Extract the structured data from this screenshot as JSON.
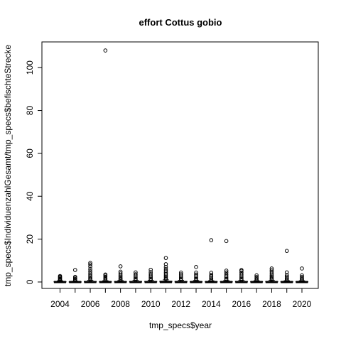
{
  "chart_data": {
    "type": "boxplot",
    "title": "effort Cottus gobio",
    "xlabel": "tmp_specs$year",
    "ylabel": "tmp_specs$IndividuenzahlGesamt/tmp_specs$befischteStrecke",
    "ylim": [
      -3,
      112
    ],
    "yticks": [
      0,
      20,
      40,
      60,
      80,
      100
    ],
    "xtick_labels": [
      "2004",
      "2006",
      "2008",
      "2010",
      "2012",
      "2014",
      "2016",
      "2018",
      "2020"
    ],
    "categories": [
      "2004",
      "2005",
      "2006",
      "2007",
      "2008",
      "2009",
      "2010",
      "2011",
      "2012",
      "2013",
      "2014",
      "2015",
      "2016",
      "2017",
      "2018",
      "2019",
      "2020"
    ],
    "boxes": [
      {
        "year": "2004",
        "min": 0,
        "q1": 0,
        "median": 0,
        "q3": 0.2,
        "max": 0.6,
        "outliers": [
          0.8,
          1.0,
          1.3,
          1.6,
          2.0,
          2.4,
          2.8
        ]
      },
      {
        "year": "2005",
        "min": 0,
        "q1": 0,
        "median": 0,
        "q3": 0.1,
        "max": 0.4,
        "outliers": [
          0.7,
          1.0,
          1.4,
          1.9,
          2.4,
          5.6
        ]
      },
      {
        "year": "2006",
        "min": 0,
        "q1": 0,
        "median": 0,
        "q3": 0.3,
        "max": 0.8,
        "outliers": [
          1.1,
          1.5,
          2.0,
          2.6,
          3.3,
          4.1,
          5.0,
          6.0,
          7.2,
          8.2,
          8.9
        ]
      },
      {
        "year": "2007",
        "min": 0,
        "q1": 0,
        "median": 0,
        "q3": 0.2,
        "max": 0.6,
        "outliers": [
          0.9,
          1.3,
          1.8,
          2.4,
          3.0,
          3.5,
          108
        ]
      },
      {
        "year": "2008",
        "min": 0,
        "q1": 0,
        "median": 0,
        "q3": 0.2,
        "max": 0.7,
        "outliers": [
          1.0,
          1.4,
          1.9,
          2.5,
          3.2,
          4.0,
          4.8,
          7.3
        ]
      },
      {
        "year": "2009",
        "min": 0,
        "q1": 0,
        "median": 0,
        "q3": 0.3,
        "max": 0.8,
        "outliers": [
          1.1,
          1.6,
          2.2,
          2.9,
          3.6,
          4.5
        ]
      },
      {
        "year": "2010",
        "min": 0,
        "q1": 0,
        "median": 0,
        "q3": 0.3,
        "max": 0.8,
        "outliers": [
          1.1,
          1.6,
          2.2,
          2.9,
          3.7,
          4.6,
          5.7
        ]
      },
      {
        "year": "2011",
        "min": 0,
        "q1": 0,
        "median": 0,
        "q3": 0.4,
        "max": 1.0,
        "outliers": [
          1.3,
          1.8,
          2.4,
          3.0,
          3.7,
          4.4,
          5.2,
          6.0,
          7.0,
          8.3,
          11.2
        ]
      },
      {
        "year": "2012",
        "min": 0,
        "q1": 0,
        "median": 0,
        "q3": 0.3,
        "max": 0.8,
        "outliers": [
          1.1,
          1.6,
          2.2,
          2.9,
          3.6,
          4.4
        ]
      },
      {
        "year": "2013",
        "min": 0,
        "q1": 0,
        "median": 0,
        "q3": 0.2,
        "max": 0.7,
        "outliers": [
          1.0,
          1.5,
          2.1,
          2.8,
          3.5,
          4.4,
          7.0
        ]
      },
      {
        "year": "2014",
        "min": 0,
        "q1": 0,
        "median": 0,
        "q3": 0.2,
        "max": 0.6,
        "outliers": [
          0.9,
          1.3,
          1.9,
          2.6,
          3.3,
          4.3,
          19.5
        ]
      },
      {
        "year": "2015",
        "min": 0,
        "q1": 0,
        "median": 0,
        "q3": 0.2,
        "max": 0.7,
        "outliers": [
          1.0,
          1.5,
          2.1,
          2.8,
          3.6,
          4.5,
          5.3,
          19.1
        ]
      },
      {
        "year": "2016",
        "min": 0,
        "q1": 0,
        "median": 0,
        "q3": 0.3,
        "max": 0.8,
        "outliers": [
          1.1,
          1.6,
          2.2,
          2.9,
          3.6,
          4.4,
          5.2,
          5.6
        ]
      },
      {
        "year": "2017",
        "min": 0,
        "q1": 0,
        "median": 0,
        "q3": 0.2,
        "max": 0.6,
        "outliers": [
          0.9,
          1.3,
          1.8,
          2.4,
          3.1
        ]
      },
      {
        "year": "2018",
        "min": 0,
        "q1": 0,
        "median": 0,
        "q3": 0.3,
        "max": 0.8,
        "outliers": [
          1.1,
          1.5,
          2.0,
          2.6,
          3.2,
          3.9,
          4.7,
          5.5,
          6.3
        ]
      },
      {
        "year": "2019",
        "min": 0,
        "q1": 0,
        "median": 0,
        "q3": 0.2,
        "max": 0.6,
        "outliers": [
          0.9,
          1.3,
          1.8,
          2.5,
          3.2,
          4.5,
          14.5
        ]
      },
      {
        "year": "2020",
        "min": 0,
        "q1": 0,
        "median": 0,
        "q3": 0.2,
        "max": 0.6,
        "outliers": [
          0.9,
          1.3,
          1.8,
          2.4,
          3.1,
          6.3
        ]
      }
    ],
    "grid": false,
    "legend": "none"
  }
}
